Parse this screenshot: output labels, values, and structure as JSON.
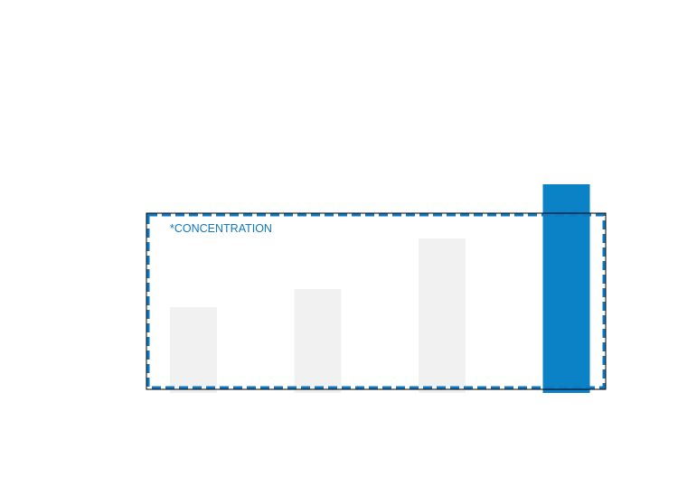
{
  "chart_data": {
    "type": "bar",
    "categories": [
      "",
      "",
      "",
      ""
    ],
    "values": [
      95,
      115,
      171,
      231
    ],
    "highlighted_index": 3,
    "annotation": "*CONCENTRATION",
    "ylim": [
      0,
      231
    ],
    "grid": false,
    "legend": "none",
    "title": "",
    "xlabel": "",
    "ylabel": ""
  },
  "colors": {
    "bar_default": "#f1f1f1",
    "bar_highlight": "#0b81c6",
    "box_outline": "#000000",
    "box_dash": "#1077c0",
    "annotation_text": "#1077c0"
  }
}
